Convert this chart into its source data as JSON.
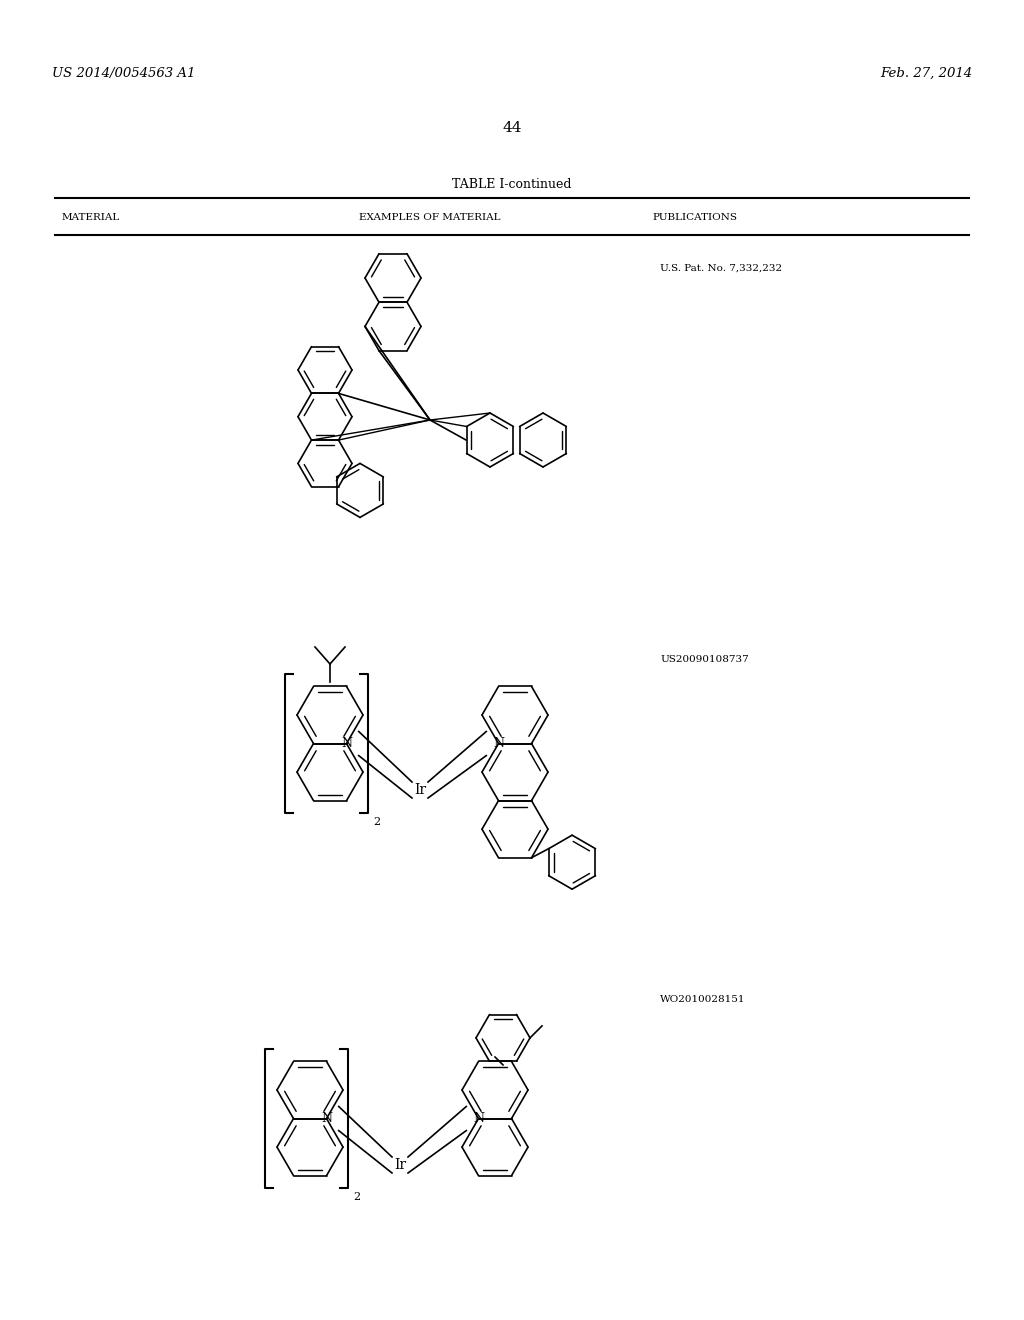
{
  "page_header_left": "US 2014/0054563 A1",
  "page_header_right": "Feb. 27, 2014",
  "page_number": "44",
  "table_title": "TABLE I-continued",
  "col1": "MATERIAL",
  "col2": "EXAMPLES OF MATERIAL",
  "col3": "PUBLICATIONS",
  "pub1": "U.S. Pat. No. 7,332,232",
  "pub2": "US20090108737",
  "pub3": "WO2010028151",
  "bg_color": "#ffffff",
  "text_color": "#000000"
}
